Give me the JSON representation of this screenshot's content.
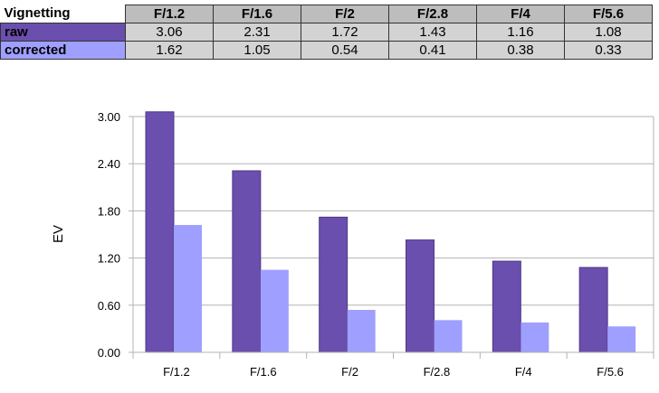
{
  "table": {
    "corner_label": "Vignetting",
    "columns": [
      "F/1.2",
      "F/1.6",
      "F/2",
      "F/2.8",
      "F/4",
      "F/5.6"
    ],
    "rows": [
      {
        "label": "raw",
        "values": [
          "3.06",
          "2.31",
          "1.72",
          "1.43",
          "1.16",
          "1.08"
        ]
      },
      {
        "label": "corrected",
        "values": [
          "1.62",
          "1.05",
          "0.54",
          "0.41",
          "0.38",
          "0.33"
        ]
      }
    ]
  },
  "chart_data": {
    "type": "bar",
    "categories": [
      "F/1.2",
      "F/1.6",
      "F/2",
      "F/2.8",
      "F/4",
      "F/5.6"
    ],
    "series": [
      {
        "name": "raw",
        "values": [
          3.06,
          2.31,
          1.72,
          1.43,
          1.16,
          1.08
        ],
        "color": "#6a4fae"
      },
      {
        "name": "corrected",
        "values": [
          1.62,
          1.05,
          0.54,
          0.41,
          0.38,
          0.33
        ],
        "color": "#9f9fff"
      }
    ],
    "ylabel": "EV",
    "xlabel": "",
    "ylim": [
      0,
      3.0
    ],
    "yticks": [
      "0.00",
      "0.60",
      "1.20",
      "1.80",
      "2.40",
      "3.00"
    ],
    "grid": true,
    "legend": "none"
  }
}
